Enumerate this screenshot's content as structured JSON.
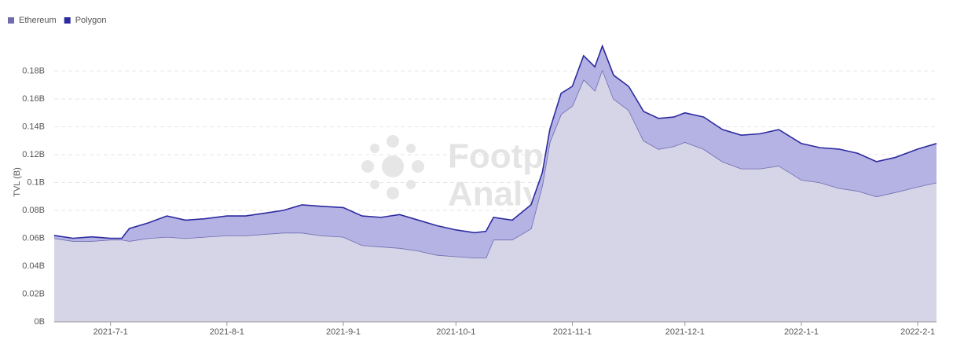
{
  "chart_data": {
    "type": "stacked_area",
    "y_label": "TVL (B)",
    "watermark": [
      "Footprint",
      "Analytics"
    ],
    "x": [
      "2021-6-16",
      "2021-6-21",
      "2021-6-26",
      "2021-7-1",
      "2021-7-4",
      "2021-7-6",
      "2021-7-11",
      "2021-7-16",
      "2021-7-21",
      "2021-7-26",
      "2021-8-1",
      "2021-8-6",
      "2021-8-11",
      "2021-8-16",
      "2021-8-21",
      "2021-8-26",
      "2021-9-1",
      "2021-9-6",
      "2021-9-11",
      "2021-9-16",
      "2021-9-21",
      "2021-9-26",
      "2021-10-1",
      "2021-10-6",
      "2021-10-9",
      "2021-10-11",
      "2021-10-16",
      "2021-10-21",
      "2021-10-24",
      "2021-10-26",
      "2021-10-29",
      "2021-11-1",
      "2021-11-4",
      "2021-11-7",
      "2021-11-9",
      "2021-11-12",
      "2021-11-16",
      "2021-11-20",
      "2021-11-24",
      "2021-11-28",
      "2021-12-1",
      "2021-12-6",
      "2021-12-11",
      "2021-12-16",
      "2021-12-21",
      "2021-12-26",
      "2022-1-1",
      "2022-1-6",
      "2022-1-11",
      "2022-1-16",
      "2022-1-21",
      "2022-1-26",
      "2022-2-1",
      "2022-2-6"
    ],
    "series": [
      {
        "name": "Ethereum",
        "color": "#6e6cae",
        "area_color": "#d6d5e8",
        "values": [
          0.06,
          0.058,
          0.058,
          0.059,
          0.059,
          0.058,
          0.06,
          0.061,
          0.06,
          0.061,
          0.062,
          0.062,
          0.063,
          0.064,
          0.064,
          0.062,
          0.061,
          0.055,
          0.054,
          0.053,
          0.051,
          0.048,
          0.047,
          0.046,
          0.046,
          0.059,
          0.059,
          0.067,
          0.098,
          0.129,
          0.149,
          0.155,
          0.174,
          0.166,
          0.181,
          0.16,
          0.152,
          0.13,
          0.124,
          0.126,
          0.129,
          0.124,
          0.115,
          0.11,
          0.11,
          0.112,
          0.102,
          0.1,
          0.096,
          0.094,
          0.09,
          0.093,
          0.097,
          0.1
        ]
      },
      {
        "name": "Polygon",
        "color": "#2d2b9f",
        "area_color": "#b5b3e4",
        "values": [
          0.002,
          0.002,
          0.003,
          0.001,
          0.001,
          0.009,
          0.011,
          0.015,
          0.013,
          0.013,
          0.014,
          0.014,
          0.015,
          0.016,
          0.02,
          0.021,
          0.021,
          0.021,
          0.021,
          0.024,
          0.022,
          0.021,
          0.019,
          0.018,
          0.019,
          0.016,
          0.014,
          0.017,
          0.009,
          0.009,
          0.015,
          0.014,
          0.017,
          0.017,
          0.017,
          0.017,
          0.017,
          0.021,
          0.022,
          0.021,
          0.021,
          0.023,
          0.023,
          0.024,
          0.025,
          0.026,
          0.026,
          0.025,
          0.028,
          0.027,
          0.025,
          0.025,
          0.027,
          0.028
        ]
      }
    ],
    "xlim": [
      "2021-6-16",
      "2022-2-6"
    ],
    "xticks": [
      "2021-7-1",
      "2021-8-1",
      "2021-9-1",
      "2021-10-1",
      "2021-11-1",
      "2021-12-1",
      "2022-1-1",
      "2022-2-1"
    ],
    "ylim": [
      0,
      0.2
    ],
    "yticks": [
      {
        "value": 0,
        "label": "0B"
      },
      {
        "value": 0.02,
        "label": "0.02B"
      },
      {
        "value": 0.04,
        "label": "0.04B"
      },
      {
        "value": 0.06,
        "label": "0.06B"
      },
      {
        "value": 0.08,
        "label": "0.08B"
      },
      {
        "value": 0.1,
        "label": "0.1B"
      },
      {
        "value": 0.12,
        "label": "0.12B"
      },
      {
        "value": 0.14,
        "label": "0.14B"
      },
      {
        "value": 0.16,
        "label": "0.16B"
      },
      {
        "value": 0.18,
        "label": "0.18B"
      }
    ],
    "grid": true,
    "legend": "top-left"
  }
}
